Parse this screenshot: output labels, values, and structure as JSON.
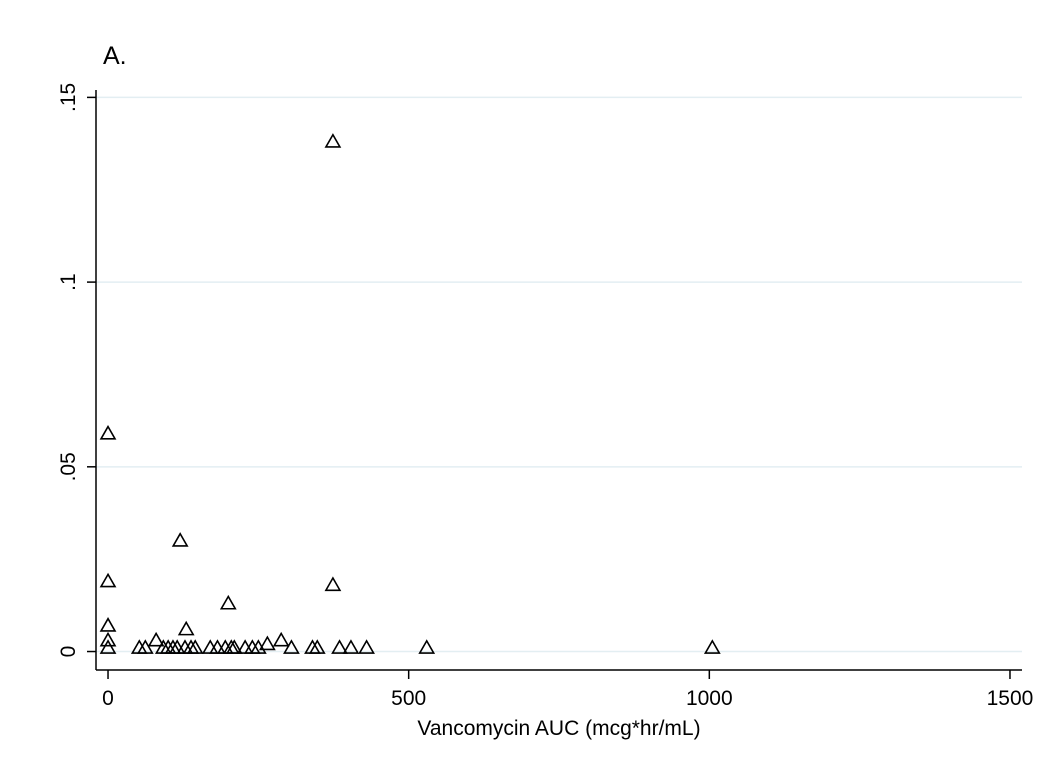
{
  "chart_data": {
    "type": "scatter",
    "title": "A.",
    "xlabel": "Vancomycin AUC (mcg*hr/mL)",
    "ylabel": "",
    "xlim": [
      -20,
      1520
    ],
    "ylim": [
      -0.005,
      0.152
    ],
    "x_ticks": [
      0,
      500,
      1000,
      1500
    ],
    "x_tick_labels": [
      "0",
      "500",
      "1000",
      "1500"
    ],
    "y_ticks": [
      0,
      0.05,
      0.1,
      0.15
    ],
    "y_tick_labels": [
      "0",
      ".05",
      ".1",
      ".15"
    ],
    "grid": "horizontal",
    "marker": "hollow-triangle",
    "colors": {
      "background": "#ffffff",
      "grid": "#e3eef2",
      "axis": "#000000",
      "marker": "#000000"
    },
    "points": [
      {
        "x": 0,
        "y": 0.059
      },
      {
        "x": 0,
        "y": 0.019
      },
      {
        "x": 0,
        "y": 0.007
      },
      {
        "x": 0,
        "y": 0.003
      },
      {
        "x": 0,
        "y": 0.001
      },
      {
        "x": 52,
        "y": 0.001
      },
      {
        "x": 62,
        "y": 0.001
      },
      {
        "x": 80,
        "y": 0.003
      },
      {
        "x": 92,
        "y": 0.001
      },
      {
        "x": 100,
        "y": 0.001
      },
      {
        "x": 108,
        "y": 0.001
      },
      {
        "x": 115,
        "y": 0.001
      },
      {
        "x": 120,
        "y": 0.03
      },
      {
        "x": 128,
        "y": 0.001
      },
      {
        "x": 130,
        "y": 0.006
      },
      {
        "x": 138,
        "y": 0.001
      },
      {
        "x": 145,
        "y": 0.001
      },
      {
        "x": 170,
        "y": 0.001
      },
      {
        "x": 182,
        "y": 0.001
      },
      {
        "x": 195,
        "y": 0.001
      },
      {
        "x": 200,
        "y": 0.013
      },
      {
        "x": 205,
        "y": 0.001
      },
      {
        "x": 210,
        "y": 0.001
      },
      {
        "x": 228,
        "y": 0.001
      },
      {
        "x": 240,
        "y": 0.001
      },
      {
        "x": 250,
        "y": 0.001
      },
      {
        "x": 265,
        "y": 0.002
      },
      {
        "x": 288,
        "y": 0.003
      },
      {
        "x": 305,
        "y": 0.001
      },
      {
        "x": 340,
        "y": 0.001
      },
      {
        "x": 348,
        "y": 0.001
      },
      {
        "x": 374,
        "y": 0.138
      },
      {
        "x": 374,
        "y": 0.018
      },
      {
        "x": 385,
        "y": 0.001
      },
      {
        "x": 404,
        "y": 0.001
      },
      {
        "x": 430,
        "y": 0.001
      },
      {
        "x": 530,
        "y": 0.001
      },
      {
        "x": 1005,
        "y": 0.001
      }
    ]
  }
}
